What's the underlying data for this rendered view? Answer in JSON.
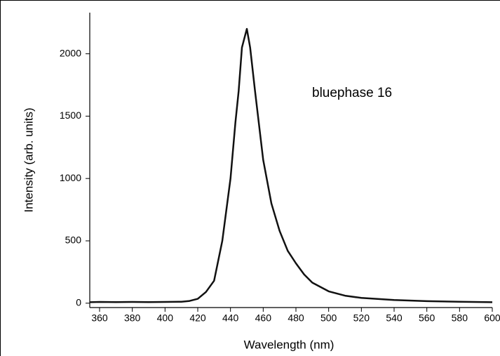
{
  "chart_data": {
    "type": "line",
    "annotation": "bluephase 16",
    "x_label": "Wavelength (nm)",
    "y_label": "Intensity (arb. units)",
    "x": [
      354,
      360,
      370,
      380,
      390,
      400,
      410,
      415,
      420,
      425,
      430,
      435,
      440,
      443,
      445,
      447,
      450,
      452,
      455,
      460,
      465,
      470,
      475,
      480,
      485,
      490,
      500,
      510,
      520,
      540,
      560,
      580,
      600
    ],
    "series": [
      {
        "name": "bluephase 16",
        "color": "#111111",
        "values": [
          8,
          10,
          9,
          10,
          9,
          10,
          12,
          18,
          35,
          90,
          180,
          500,
          1000,
          1450,
          1700,
          2050,
          2200,
          2050,
          1700,
          1150,
          800,
          580,
          420,
          320,
          230,
          165,
          95,
          60,
          42,
          25,
          16,
          11,
          8
        ]
      }
    ],
    "xlim": [
      354,
      600
    ],
    "ylim": [
      -35,
      2330
    ],
    "xticks": [
      360,
      380,
      400,
      420,
      440,
      460,
      480,
      500,
      520,
      540,
      560,
      580,
      600
    ],
    "yticks": [
      0,
      500,
      1000,
      1500,
      2000
    ]
  }
}
